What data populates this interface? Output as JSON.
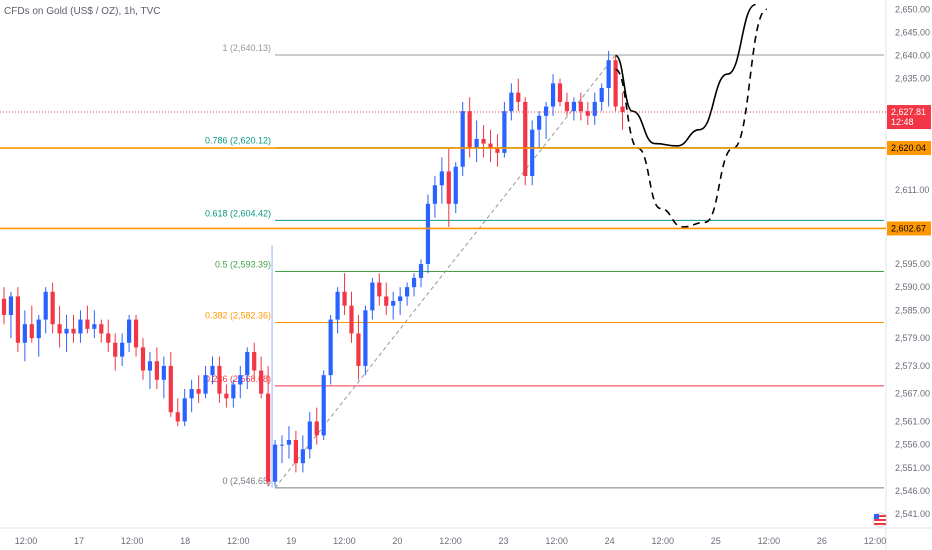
{
  "title": "CFDs on Gold (US$ / OZ), 1h, TVC",
  "chart_data": {
    "type": "candlestick",
    "symbol": "CFDs on Gold (US$ / OZ)",
    "interval": "1h",
    "source": "TVC",
    "y_range": [
      2538,
      2652
    ],
    "y_ticks": [
      "2,650.00",
      "2,645.00",
      "2,640.00",
      "2,635.00",
      "2,620.04",
      "2,611.00",
      "2,602.67",
      "2,595.00",
      "2,590.00",
      "2,585.00",
      "2,579.00",
      "2,573.00",
      "2,567.00",
      "2,561.00",
      "2,556.00",
      "2,551.00",
      "2,546.00",
      "2,541.00"
    ],
    "x_ticks": [
      "12:00",
      "17",
      "12:00",
      "18",
      "12:00",
      "19",
      "12:00",
      "20",
      "12:00",
      "23",
      "12:00",
      "24",
      "12:00",
      "25",
      "12:00",
      "26",
      "12:00"
    ],
    "candles": [
      [
        2587.5,
        2590,
        2582,
        2584
      ],
      [
        2584,
        2589,
        2579,
        2588
      ],
      [
        2588,
        2590,
        2576,
        2578
      ],
      [
        2578,
        2585,
        2574,
        2582
      ],
      [
        2582,
        2586,
        2578,
        2579
      ],
      [
        2579,
        2584,
        2575,
        2583
      ],
      [
        2583,
        2590,
        2580,
        2589
      ],
      [
        2589,
        2591,
        2580,
        2582
      ],
      [
        2582,
        2586,
        2577,
        2580
      ],
      [
        2580,
        2584,
        2576,
        2581
      ],
      [
        2581,
        2584,
        2578,
        2580
      ],
      [
        2580,
        2585,
        2578,
        2583
      ],
      [
        2583,
        2586,
        2580,
        2581
      ],
      [
        2581,
        2585,
        2579,
        2582
      ],
      [
        2582,
        2583,
        2578,
        2580
      ],
      [
        2580,
        2583,
        2576,
        2578
      ],
      [
        2578,
        2580,
        2572,
        2575
      ],
      [
        2575,
        2580,
        2573,
        2578
      ],
      [
        2578,
        2584,
        2576,
        2583
      ],
      [
        2583,
        2584,
        2575,
        2577
      ],
      [
        2577,
        2579,
        2570,
        2572
      ],
      [
        2572,
        2576,
        2568,
        2574
      ],
      [
        2574,
        2577,
        2568,
        2570
      ],
      [
        2570,
        2575,
        2566,
        2573
      ],
      [
        2573,
        2576,
        2562,
        2563
      ],
      [
        2563,
        2566,
        2560,
        2561
      ],
      [
        2561,
        2568,
        2560,
        2566
      ],
      [
        2566,
        2570,
        2563,
        2568
      ],
      [
        2568,
        2571,
        2565,
        2567
      ],
      [
        2567,
        2573,
        2566,
        2571
      ],
      [
        2571,
        2575,
        2569,
        2573
      ],
      [
        2573,
        2575,
        2565,
        2567
      ],
      [
        2567,
        2569,
        2564,
        2566
      ],
      [
        2566,
        2570,
        2564,
        2569
      ],
      [
        2569,
        2573,
        2566,
        2571
      ],
      [
        2571,
        2577,
        2568,
        2576
      ],
      [
        2576,
        2578,
        2570,
        2572
      ],
      [
        2572,
        2575,
        2566,
        2567
      ],
      [
        2567,
        2573,
        2547,
        2548
      ],
      [
        2548,
        2557,
        2547,
        2556
      ],
      [
        2556,
        2558,
        2552,
        2556
      ],
      [
        2556,
        2560,
        2553,
        2557
      ],
      [
        2557,
        2559,
        2550,
        2552
      ],
      [
        2552,
        2558,
        2550,
        2555
      ],
      [
        2555,
        2563,
        2553,
        2561
      ],
      [
        2561,
        2564,
        2556,
        2558
      ],
      [
        2558,
        2572,
        2557,
        2571
      ],
      [
        2571,
        2584,
        2569,
        2583
      ],
      [
        2583,
        2590,
        2580,
        2589
      ],
      [
        2589,
        2593,
        2584,
        2586
      ],
      [
        2586,
        2589,
        2578,
        2580
      ],
      [
        2580,
        2584,
        2570,
        2573
      ],
      [
        2573,
        2586,
        2571,
        2585
      ],
      [
        2585,
        2592,
        2583,
        2591
      ],
      [
        2591,
        2593,
        2586,
        2588
      ],
      [
        2588,
        2591,
        2584,
        2586
      ],
      [
        2586,
        2589,
        2583,
        2587
      ],
      [
        2587,
        2590,
        2584,
        2588
      ],
      [
        2588,
        2591,
        2586,
        2590
      ],
      [
        2590,
        2593,
        2588,
        2592
      ],
      [
        2592,
        2596,
        2590,
        2595
      ],
      [
        2595,
        2610,
        2593,
        2608
      ],
      [
        2608,
        2614,
        2605,
        2612
      ],
      [
        2612,
        2618,
        2608,
        2615
      ],
      [
        2615,
        2620,
        2603,
        2608
      ],
      [
        2608,
        2617,
        2606,
        2616
      ],
      [
        2616,
        2630,
        2614,
        2628
      ],
      [
        2628,
        2631,
        2618,
        2620
      ],
      [
        2620,
        2626,
        2617,
        2622
      ],
      [
        2622,
        2625,
        2618,
        2621
      ],
      [
        2621,
        2624,
        2617,
        2620
      ],
      [
        2620,
        2623,
        2616,
        2619
      ],
      [
        2619,
        2630,
        2618,
        2628
      ],
      [
        2628,
        2634,
        2626,
        2632
      ],
      [
        2632,
        2635,
        2628,
        2630
      ],
      [
        2630,
        2631,
        2612,
        2614
      ],
      [
        2614,
        2626,
        2612,
        2624
      ],
      [
        2624,
        2628,
        2620,
        2627
      ],
      [
        2627,
        2630,
        2622,
        2629
      ],
      [
        2629,
        2636,
        2627,
        2634
      ],
      [
        2634,
        2635,
        2629,
        2630
      ],
      [
        2630,
        2632,
        2627,
        2628
      ],
      [
        2628,
        2631,
        2626,
        2630
      ],
      [
        2630,
        2632,
        2626,
        2628
      ],
      [
        2628,
        2630,
        2625,
        2627
      ],
      [
        2627,
        2632,
        2625,
        2630
      ],
      [
        2630,
        2634,
        2628,
        2633
      ],
      [
        2633,
        2641,
        2629,
        2639
      ],
      [
        2639,
        2640,
        2628,
        2629
      ],
      [
        2629,
        2632,
        2624,
        2627.81
      ]
    ],
    "fib_levels": [
      {
        "label": "1 (2,640.13)",
        "value": 2640.13,
        "color": "#9598a1"
      },
      {
        "label": "0.786 (2,620.12)",
        "value": 2620.12,
        "color": "#089981"
      },
      {
        "label": "0.618 (2,604.42)",
        "value": 2604.42,
        "color": "#089981"
      },
      {
        "label": "0.5 (2,593.39)",
        "value": 2593.39,
        "color": "#43a047"
      },
      {
        "label": "0.382 (2,582.36)",
        "value": 2582.36,
        "color": "#ff9800"
      },
      {
        "label": "0.236 (2,568.68)",
        "value": 2568.68,
        "color": "#f23645"
      },
      {
        "label": "0 (2,546.65)",
        "value": 2546.65,
        "color": "#787b86"
      }
    ],
    "horizontal_lines": [
      {
        "value": 2620.04,
        "color": "#ff9800",
        "tag": "2,620.04"
      },
      {
        "value": 2602.67,
        "color": "#ff9800",
        "tag": "2,602.67"
      }
    ],
    "last_price": {
      "value": 2627.81,
      "label": "2,627.81",
      "countdown": "12:48",
      "color": "#f23645"
    },
    "projections": [
      {
        "style": "solid",
        "points": [
          [
            0,
            2640
          ],
          [
            3,
            2628
          ],
          [
            7,
            2621
          ],
          [
            11,
            2620.5
          ],
          [
            15,
            2624
          ],
          [
            20,
            2636
          ],
          [
            25,
            2651
          ]
        ]
      },
      {
        "style": "dashed",
        "points": [
          [
            0,
            2637
          ],
          [
            4,
            2620
          ],
          [
            8,
            2607
          ],
          [
            12,
            2603
          ],
          [
            16,
            2604
          ],
          [
            21,
            2620
          ],
          [
            27,
            2650
          ]
        ]
      }
    ],
    "colors": {
      "up": "#2962ff",
      "down": "#f23645",
      "wick": "#6a6d78"
    }
  }
}
